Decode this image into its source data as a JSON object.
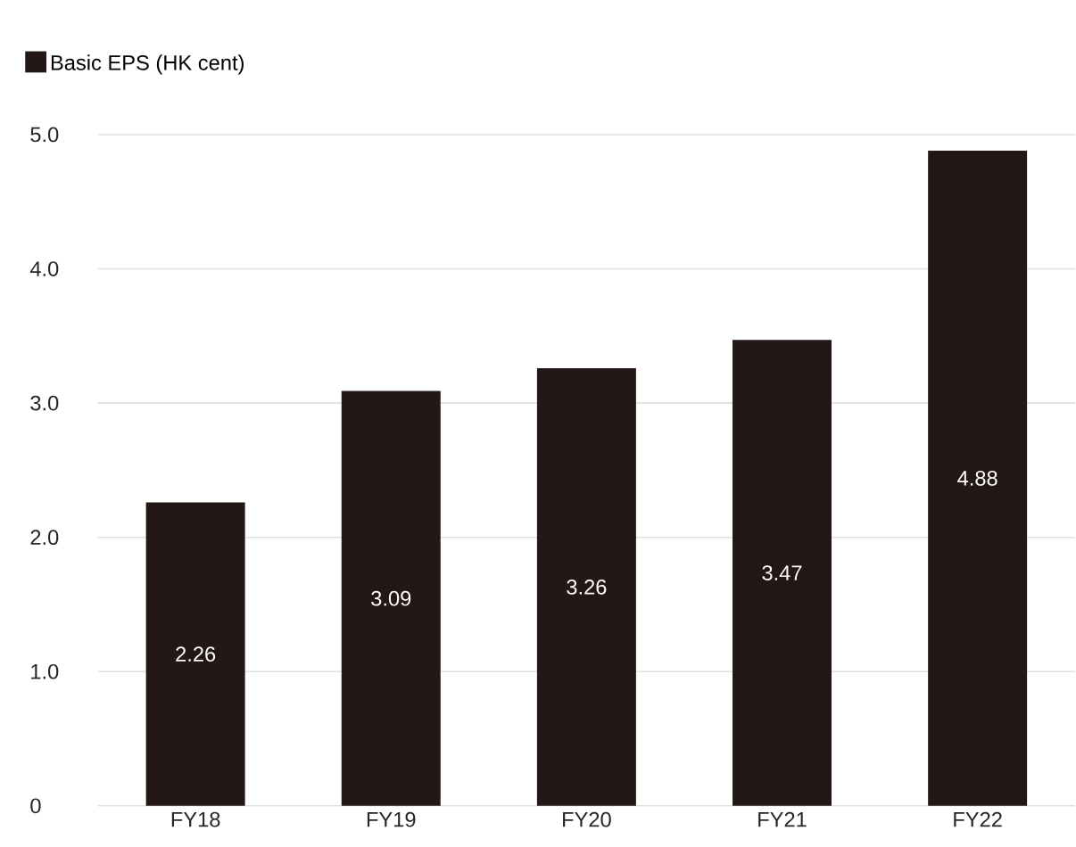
{
  "chart_data": {
    "type": "bar",
    "categories": [
      "FY18",
      "FY19",
      "FY20",
      "FY21",
      "FY22"
    ],
    "series": [
      {
        "name": "Basic EPS (HK cent)",
        "color": "#231815",
        "values": [
          2.26,
          3.09,
          3.26,
          3.47,
          4.88
        ]
      }
    ],
    "ylim": [
      0,
      5
    ],
    "yticks": [
      0,
      {
        "value": 1,
        "label": "1.0"
      },
      {
        "value": 2,
        "label": "2.0"
      },
      {
        "value": 3,
        "label": "3.0"
      },
      {
        "value": 4,
        "label": "4.0"
      },
      {
        "value": 5,
        "label": "5.0"
      }
    ],
    "grid": "y",
    "legend": "top left",
    "data_labels": true
  }
}
